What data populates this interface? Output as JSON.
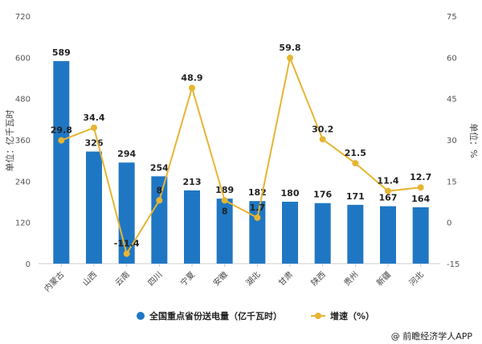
{
  "chart_data": {
    "type": "bar+line",
    "categories": [
      "内蒙古",
      "山西",
      "云南",
      "四川",
      "宁夏",
      "安徽",
      "湖北",
      "甘肃",
      "陕西",
      "贵州",
      "新疆",
      "河北"
    ],
    "series": [
      {
        "name": "全国重点省份送电量（亿千瓦时）",
        "type": "bar",
        "axis": "left",
        "color": "#1f77c4",
        "values": [
          589,
          326,
          294,
          254,
          213,
          189,
          182,
          180,
          176,
          171,
          167,
          164
        ]
      },
      {
        "name": "增速（%）",
        "type": "line",
        "axis": "right",
        "color": "#e6b532",
        "values": [
          29.8,
          34.4,
          -11.4,
          8,
          48.9,
          8,
          1.7,
          59.8,
          30.2,
          21.5,
          11.4,
          12.7
        ]
      }
    ],
    "ylabel_left": "单位：亿千瓦时",
    "ylabel_right": "单位：%",
    "ylim_left": [
      0,
      720
    ],
    "yticks_left": [
      0,
      120,
      240,
      360,
      480,
      600,
      720
    ],
    "ylim_right": [
      -15,
      75
    ],
    "yticks_right": [
      -15,
      0,
      15,
      30,
      45,
      60,
      75
    ],
    "legend_position": "bottom"
  },
  "credit": "@ 前瞻经济学人APP"
}
